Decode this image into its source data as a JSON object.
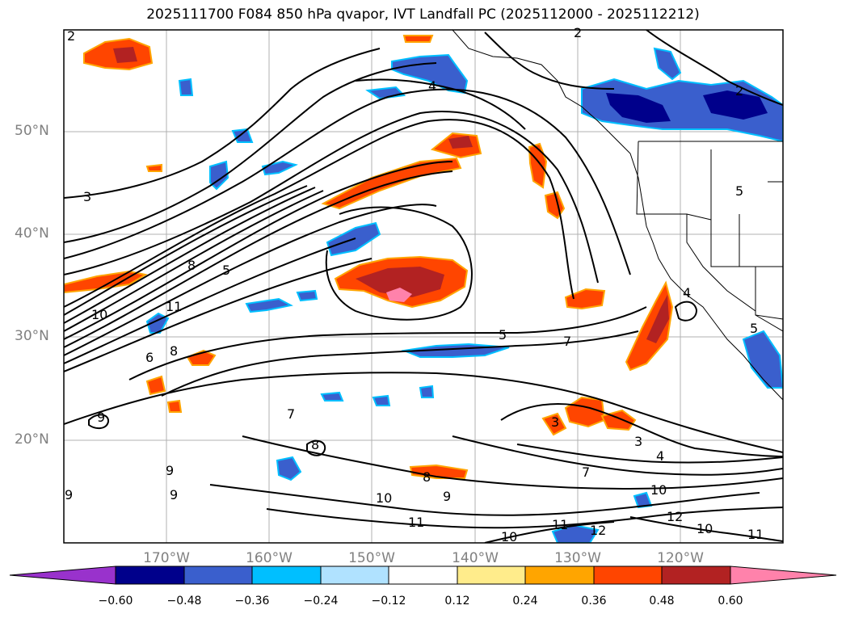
{
  "title": "2025111700 F084 850 hPa qvapor, IVT Landfall PC (2025112000 - 2025112212)",
  "lat_labels": [
    "50°N",
    "40°N",
    "30°N",
    "20°N"
  ],
  "lon_labels": [
    "170°W",
    "160°W",
    "150°W",
    "140°W",
    "130°W",
    "120°W"
  ],
  "colorbar": {
    "ticks": [
      "−0.60",
      "−0.48",
      "−0.36",
      "−0.24",
      "−0.12",
      "0.12",
      "0.24",
      "0.36",
      "0.48",
      "0.60"
    ],
    "colors": [
      "#9932cc",
      "#00008b",
      "#3a5fcd",
      "#00bfff",
      "#b0e2ff",
      "#ffffff",
      "#ffec8b",
      "#ffa500",
      "#ff4500",
      "#b22222",
      "#ff82ab"
    ]
  },
  "contour_labels": [
    "2",
    "2",
    "3",
    "3",
    "5",
    "4",
    "4",
    "5",
    "7",
    "7",
    "4",
    "3",
    "10",
    "12",
    "10",
    "11",
    "11",
    "12",
    "11",
    "10",
    "10",
    "9",
    "8",
    "9",
    "9",
    "9",
    "8",
    "7",
    "6",
    "8",
    "5",
    "10",
    "11",
    "9",
    "8",
    "2",
    "5"
  ]
}
